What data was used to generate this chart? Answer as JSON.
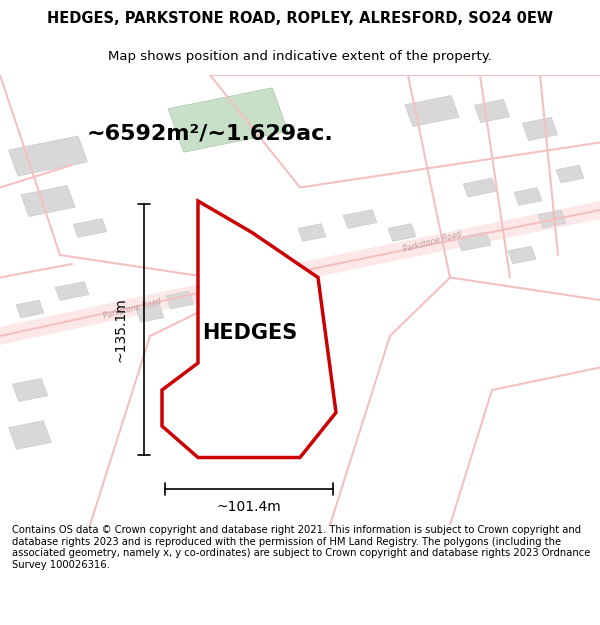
{
  "title": "HEDGES, PARKSTONE ROAD, ROPLEY, ALRESFORD, SO24 0EW",
  "subtitle": "Map shows position and indicative extent of the property.",
  "area_text": "~6592m²/~1.629ac.",
  "property_label": "HEDGES",
  "dim_width": "~101.4m",
  "dim_height": "~135.1m",
  "footer_text": "Contains OS data © Crown copyright and database right 2021. This information is subject to Crown copyright and database rights 2023 and is reproduced with the permission of HM Land Registry. The polygons (including the associated geometry, namely x, y co-ordinates) are subject to Crown copyright and database rights 2023 Ordnance Survey 100026316.",
  "bg_color": "#ffffff",
  "map_bg": "#ffffff",
  "road_color": "#f5c0c0",
  "building_color": "#d8d8d8",
  "building_edge": "#cccccc",
  "road_label_color": "#c0a0a0",
  "plot_edge_color": "#cc0000",
  "plot_fill_color": "#ffffff",
  "title_color": "#000000",
  "footer_color": "#000000",
  "dim_color": "#000000",
  "property_label_color": "#000000",
  "area_text_color": "#000000"
}
